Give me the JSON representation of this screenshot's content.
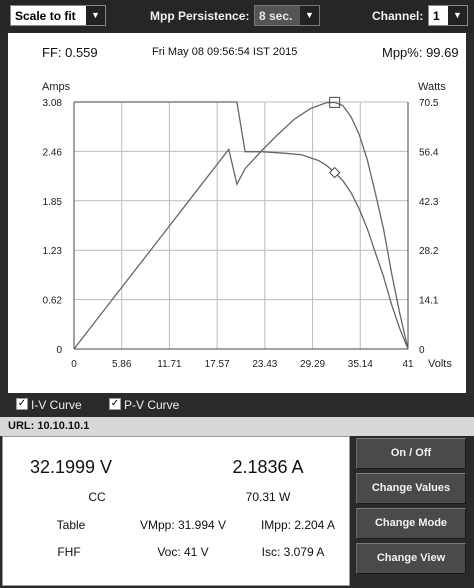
{
  "topbar": {
    "scale_select": "Scale to fit",
    "mpp_persistence_label": "Mpp Persistence:",
    "mpp_persistence_value": "8 sec.",
    "channel_label": "Channel:",
    "channel_value": "1"
  },
  "plot_header": {
    "ff": "FF: 0.559",
    "datetime": "Fri May 08 09:56:54 IST 2015",
    "mpp_percent": "Mpp%: 99.69"
  },
  "chart_data": {
    "type": "line",
    "xlabel": "Volts",
    "ylabel_left": "Amps",
    "ylabel_right": "Watts",
    "xlim": [
      0,
      41
    ],
    "ylim_left": [
      0,
      3.08
    ],
    "ylim_right": [
      0,
      70.5
    ],
    "x_ticks": [
      "0",
      "5.86",
      "11.71",
      "17.57",
      "23.43",
      "29.29",
      "35.14",
      "41"
    ],
    "y_ticks_left": [
      "0",
      "0.62",
      "1.23",
      "1.85",
      "2.46",
      "3.08"
    ],
    "y_ticks_right": [
      "0",
      "14.1",
      "28.2",
      "42.3",
      "56.4",
      "70.5"
    ],
    "grid": true,
    "series": [
      {
        "name": "I-V Curve",
        "axis": "left",
        "x": [
          0,
          20,
          21,
          23,
          26,
          28,
          30,
          31,
          32,
          33,
          34,
          35,
          36,
          37,
          38,
          39,
          40,
          41
        ],
        "y": [
          3.08,
          3.08,
          2.46,
          2.46,
          2.44,
          2.42,
          2.35,
          2.29,
          2.2,
          2.1,
          1.95,
          1.75,
          1.5,
          1.2,
          0.9,
          0.55,
          0.25,
          0
        ]
      },
      {
        "name": "P-V Curve",
        "axis": "right",
        "x": [
          0,
          5,
          10,
          15,
          19,
          20,
          21,
          23,
          25,
          27,
          29,
          31,
          32,
          33,
          34,
          35,
          36,
          37,
          38,
          39,
          40,
          41
        ],
        "y": [
          0,
          15,
          30,
          45,
          57,
          47,
          51.5,
          56.5,
          61.2,
          65.5,
          68.6,
          70.3,
          70.4,
          69.5,
          66.3,
          61.3,
          54,
          44.4,
          34.2,
          21.5,
          10,
          0
        ]
      }
    ],
    "markers": [
      {
        "type": "diamond",
        "axis": "left",
        "x": 32,
        "y": 2.2
      },
      {
        "type": "square",
        "axis": "right",
        "x": 32,
        "y": 70.4
      }
    ]
  },
  "legend": {
    "iv_label": "I-V Curve",
    "pv_label": "P-V Curve",
    "iv_checked": true,
    "pv_checked": true
  },
  "url": "URL: 10.10.10.1",
  "readings": {
    "voltage": "32.1999 V",
    "current": "2.1836 A",
    "mode": "CC",
    "power": "70.31 W",
    "table": "Table",
    "vmpp": "VMpp: 31.994 V",
    "impp": "IMpp: 2.204 A",
    "fhf": "FHF",
    "voc": "Voc: 41 V",
    "isc": "Isc: 3.079 A"
  },
  "buttons": {
    "on_off": "On / Off",
    "change_values": "Change Values",
    "change_mode": "Change Mode",
    "change_view": "Change View"
  },
  "colors": {
    "curve": "#666666",
    "grid": "#bbbbbb",
    "button_bg": "#4a4a4a",
    "panel_bg": "#2a2a2a"
  }
}
